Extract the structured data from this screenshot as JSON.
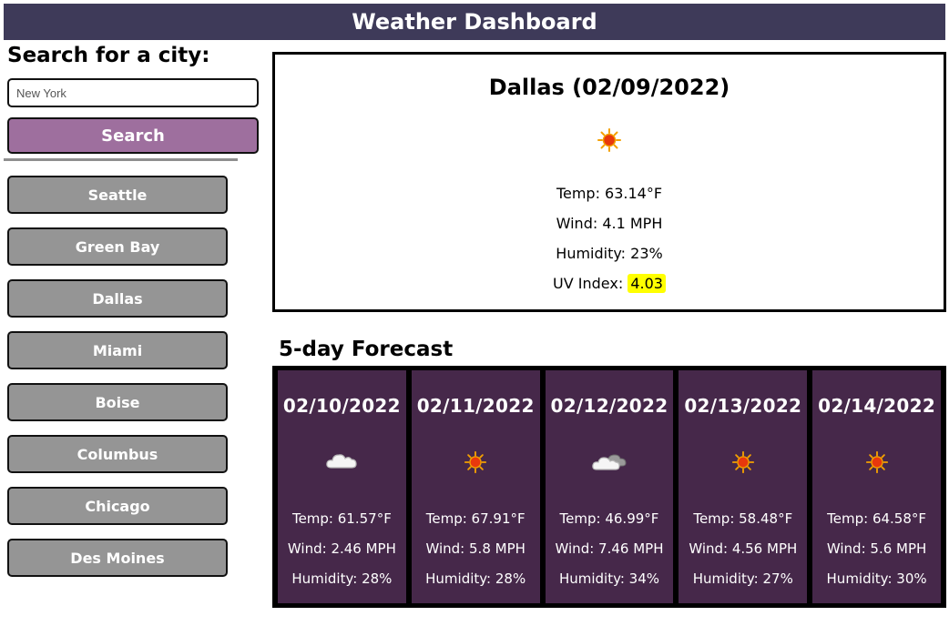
{
  "header": {
    "title": "Weather Dashboard"
  },
  "search": {
    "title": "Search for a city:",
    "placeholder": "New York",
    "button_label": "Search"
  },
  "history": [
    "Seattle",
    "Green Bay",
    "Dallas",
    "Miami",
    "Boise",
    "Columbus",
    "Chicago",
    "Des Moines"
  ],
  "current": {
    "title": "Dallas (02/09/2022)",
    "icon": "sun-icon",
    "temp": "Temp: 63.14°F",
    "wind": "Wind: 4.1 MPH",
    "humidity": "Humidity: 23%",
    "uv_label": "UV Index:",
    "uv_value": "4.03"
  },
  "forecast": {
    "title": "5-day Forecast",
    "days": [
      {
        "date": "02/10/2022",
        "icon": "cloud-icon",
        "temp": "Temp: 61.57°F",
        "wind": "Wind: 2.46 MPH",
        "humidity": "Humidity: 28%"
      },
      {
        "date": "02/11/2022",
        "icon": "sun-icon",
        "temp": "Temp: 67.91°F",
        "wind": "Wind: 5.8 MPH",
        "humidity": "Humidity: 28%"
      },
      {
        "date": "02/12/2022",
        "icon": "clouds-icon",
        "temp": "Temp: 46.99°F",
        "wind": "Wind: 7.46 MPH",
        "humidity": "Humidity: 34%"
      },
      {
        "date": "02/13/2022",
        "icon": "sun-icon",
        "temp": "Temp: 58.48°F",
        "wind": "Wind: 4.56 MPH",
        "humidity": "Humidity: 27%"
      },
      {
        "date": "02/14/2022",
        "icon": "sun-icon",
        "temp": "Temp: 64.58°F",
        "wind": "Wind: 5.6 MPH",
        "humidity": "Humidity: 30%"
      }
    ]
  }
}
